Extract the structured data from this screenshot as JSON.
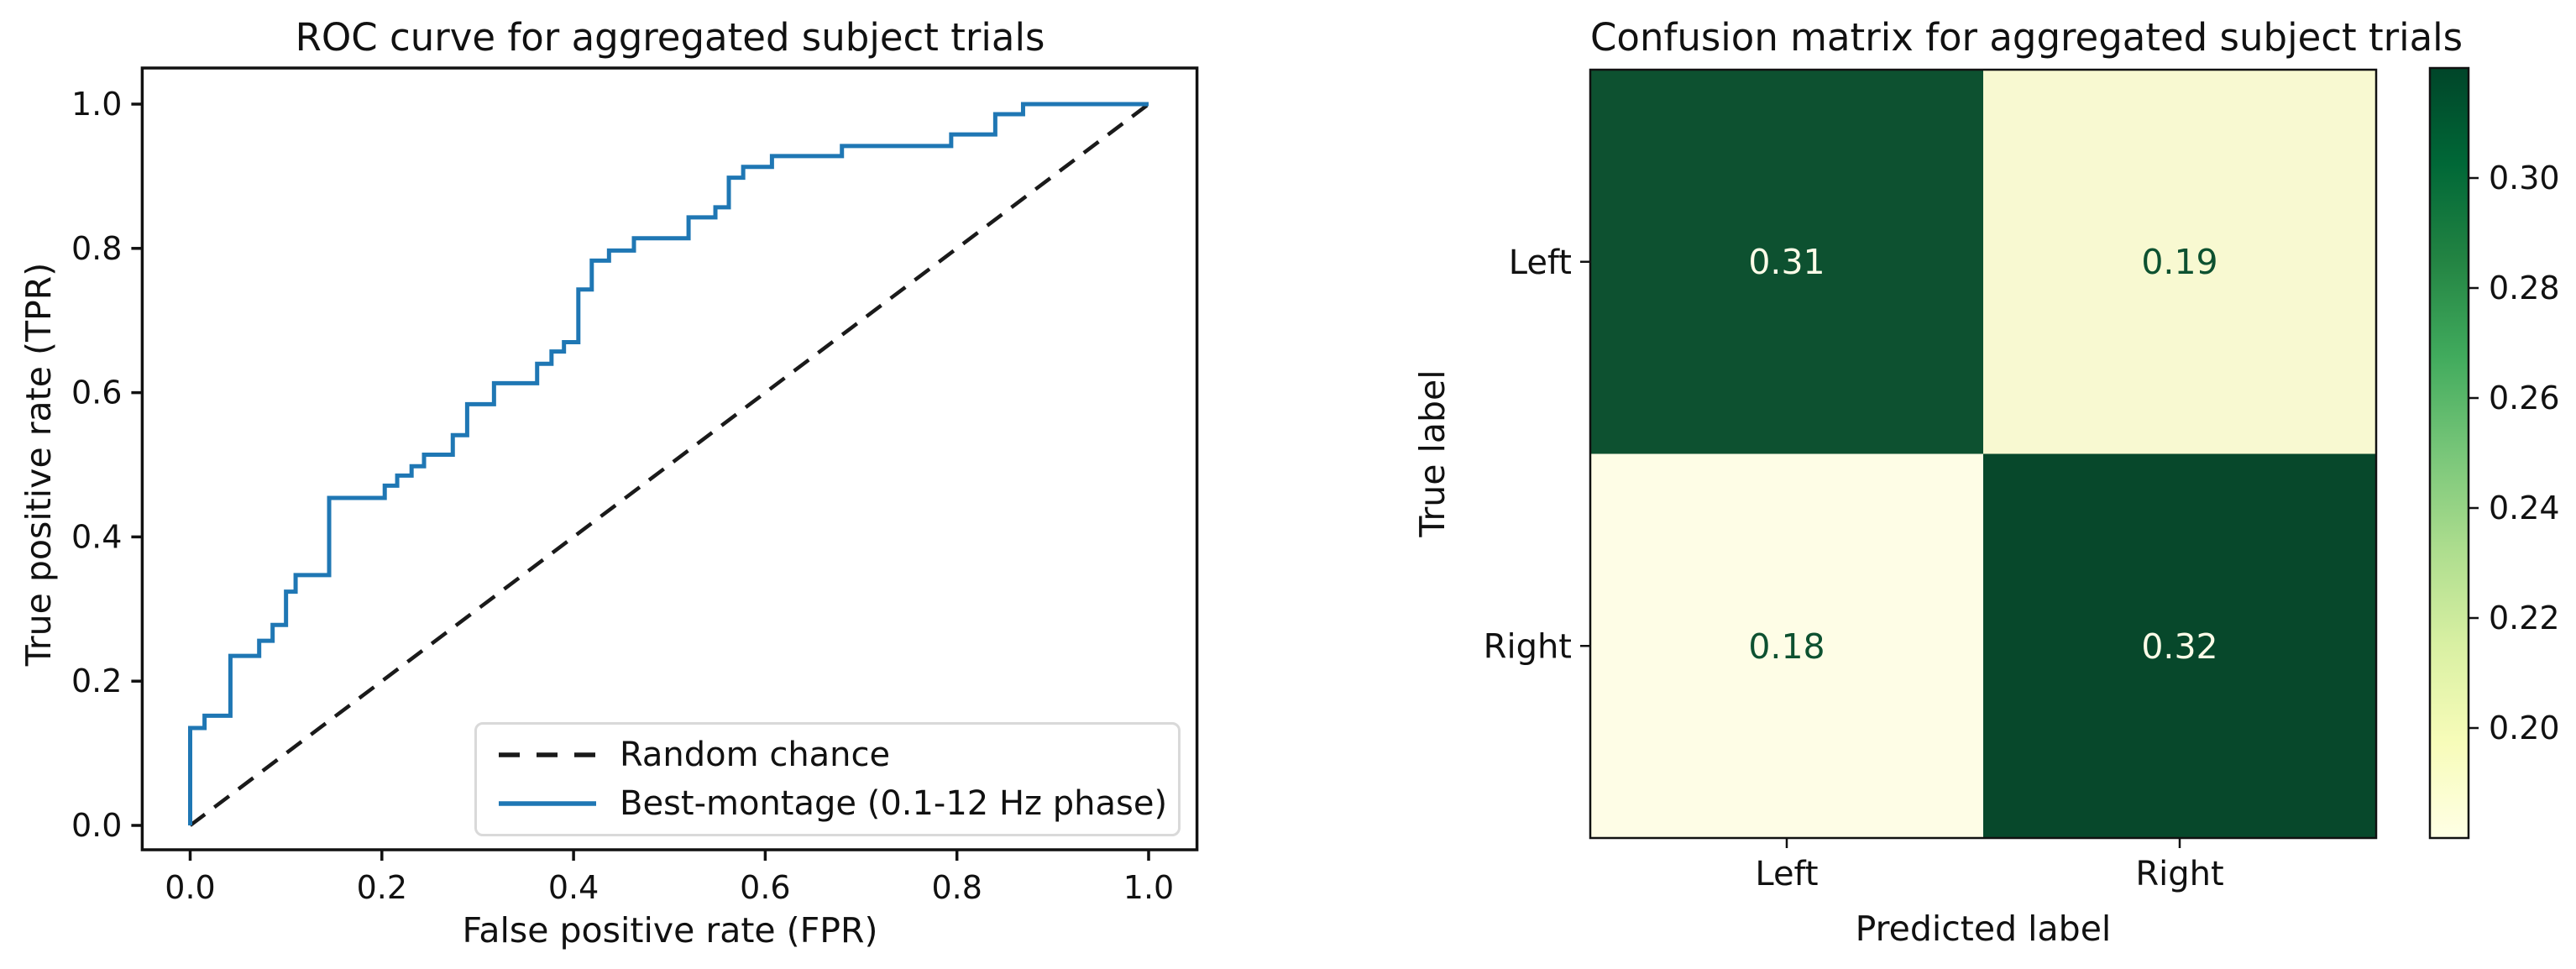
{
  "figure": {
    "background": "#ffffff",
    "text_color": "#111111"
  },
  "chart_data": [
    {
      "type": "line",
      "title": "ROC curve for aggregated subject trials",
      "xlabel": "False positive rate (FPR)",
      "ylabel": "True positive rate (TPR)",
      "xlim": [
        -0.05,
        1.05
      ],
      "ylim": [
        -0.04,
        1.05
      ],
      "grid": false,
      "xticks": [
        0,
        0.2,
        0.4,
        0.6,
        0.8,
        1.0
      ],
      "xtick_labels": [
        "0.0",
        "0.2",
        "0.4",
        "0.6",
        "0.8",
        "1.0"
      ],
      "yticks": [
        0,
        0.2,
        0.4,
        0.6,
        0.8,
        1.0
      ],
      "ytick_labels": [
        "0.0",
        "0.2",
        "0.4",
        "0.6",
        "0.8",
        "1.0"
      ],
      "legend_position": "lower right",
      "legend": [
        {
          "label": "Random chance",
          "line_style": "dashed",
          "color": "#1a1a1a"
        },
        {
          "label": "Best-montage (0.1-12 Hz phase)",
          "line_style": "solid",
          "color": "#1f77b4"
        }
      ],
      "series": [
        {
          "name": "Random chance",
          "type": "line",
          "style": "dashed",
          "color": "#1a1a1a",
          "points": [
            [
              0,
              0
            ],
            [
              1,
              1
            ]
          ]
        },
        {
          "name": "Best-montage (0.1-12 Hz phase)",
          "type": "step",
          "color": "#1f77b4",
          "steps": [
            [
              0.0,
              0.135
            ],
            [
              0.015,
              0.152
            ],
            [
              0.042,
              0.235
            ],
            [
              0.072,
              0.256
            ],
            [
              0.086,
              0.278
            ],
            [
              0.1,
              0.324
            ],
            [
              0.11,
              0.347
            ],
            [
              0.145,
              0.454
            ],
            [
              0.203,
              0.471
            ],
            [
              0.216,
              0.485
            ],
            [
              0.231,
              0.498
            ],
            [
              0.244,
              0.514
            ],
            [
              0.274,
              0.541
            ],
            [
              0.289,
              0.584
            ],
            [
              0.317,
              0.613
            ],
            [
              0.362,
              0.64
            ],
            [
              0.377,
              0.657
            ],
            [
              0.39,
              0.67
            ],
            [
              0.405,
              0.743
            ],
            [
              0.419,
              0.783
            ],
            [
              0.437,
              0.797
            ],
            [
              0.463,
              0.814
            ],
            [
              0.52,
              0.843
            ],
            [
              0.548,
              0.857
            ],
            [
              0.562,
              0.898
            ],
            [
              0.577,
              0.913
            ],
            [
              0.607,
              0.928
            ],
            [
              0.68,
              0.942
            ],
            [
              0.794,
              0.958
            ],
            [
              0.84,
              0.986
            ],
            [
              0.869,
              1.0
            ],
            [
              1.0,
              1.0
            ]
          ]
        }
      ]
    },
    {
      "type": "heatmap",
      "title": "Confusion matrix for aggregated subject trials",
      "xlabel": "Predicted label",
      "ylabel": "True label",
      "row_labels": [
        "Left",
        "Right"
      ],
      "col_labels": [
        "Left",
        "Right"
      ],
      "values": [
        [
          0.31,
          0.19
        ],
        [
          0.18,
          0.32
        ]
      ],
      "cell_colors": [
        [
          "#0d5130",
          "#f8f9d1"
        ],
        [
          "#fefde6",
          "#07482b"
        ]
      ],
      "cell_text_colors": [
        [
          "#fdfce8",
          "#0d5130"
        ],
        [
          "#0d5130",
          "#fdfce8"
        ]
      ],
      "colorbar": {
        "vmin": 0.18,
        "vmax": 0.32,
        "ticks": [
          0.3,
          0.28,
          0.26,
          0.24,
          0.22,
          0.2
        ],
        "tick_labels": [
          "0.30",
          "0.28",
          "0.26",
          "0.24",
          "0.22",
          "0.20"
        ],
        "colormap": "YlGn",
        "gradient_top_to_bottom": [
          "#004529",
          "#006837",
          "#238443",
          "#41ab5d",
          "#78c679",
          "#addd8e",
          "#d9f0a3",
          "#f7fcb9",
          "#ffffe5"
        ]
      }
    }
  ]
}
